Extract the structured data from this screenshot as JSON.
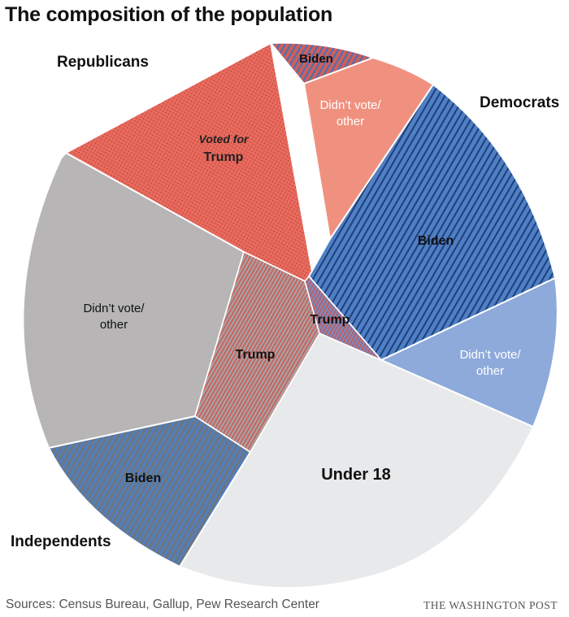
{
  "chart_data": {
    "type": "pie",
    "title": "The composition of the population",
    "groups": [
      "Republicans",
      "Democrats",
      "Independents"
    ],
    "slices": [
      {
        "group": "Republicans",
        "label": "Biden",
        "pct": 3,
        "color": "#ce5f5b",
        "pattern": "blue-stripe-on-red"
      },
      {
        "group": "Republicans",
        "label": "Didn’t vote/|other",
        "pct": 5,
        "color": "#f0917f",
        "pattern": "none"
      },
      {
        "group": "Democrats",
        "label": "Biden",
        "pct": 16,
        "color": "#4f7fc5",
        "pattern": "dark-stripe"
      },
      {
        "group": "Democrats",
        "label": "Didn’t vote/|other",
        "pct": 7.5,
        "color": "#8eaadb",
        "pattern": "none"
      },
      {
        "group": "",
        "label": "Under 18",
        "pct": 22.5,
        "color": "#e8e9eb",
        "pattern": "none"
      },
      {
        "group": "Independents",
        "label": "Biden",
        "pct": 9,
        "color": "#6b7682",
        "pattern": "blue-stripe"
      },
      {
        "group": "Independents",
        "label": "Didn’t vote/|other",
        "pct": 18.5,
        "color": "#b7b5b5",
        "pattern": "none"
      },
      {
        "group": "Republicans",
        "label": "Voted for|Trump",
        "pct": 18.5,
        "color": "#e96a5d",
        "pattern": "dots"
      }
    ],
    "inner_slices": [
      {
        "group": "Independents",
        "label": "Trump",
        "color": "#b0a3a3",
        "pattern": "red-stripe"
      },
      {
        "group": "Democrats",
        "label": "Trump",
        "color": "#8e8fb8",
        "pattern": "red-stripe"
      }
    ]
  },
  "labels": {
    "republicans": "Republicans",
    "democrats": "Democrats",
    "independents": "Independents"
  },
  "footer": {
    "source": "Sources: Census Bureau, Gallup, Pew Research Center",
    "credit": "THE WASHINGTON POST"
  }
}
